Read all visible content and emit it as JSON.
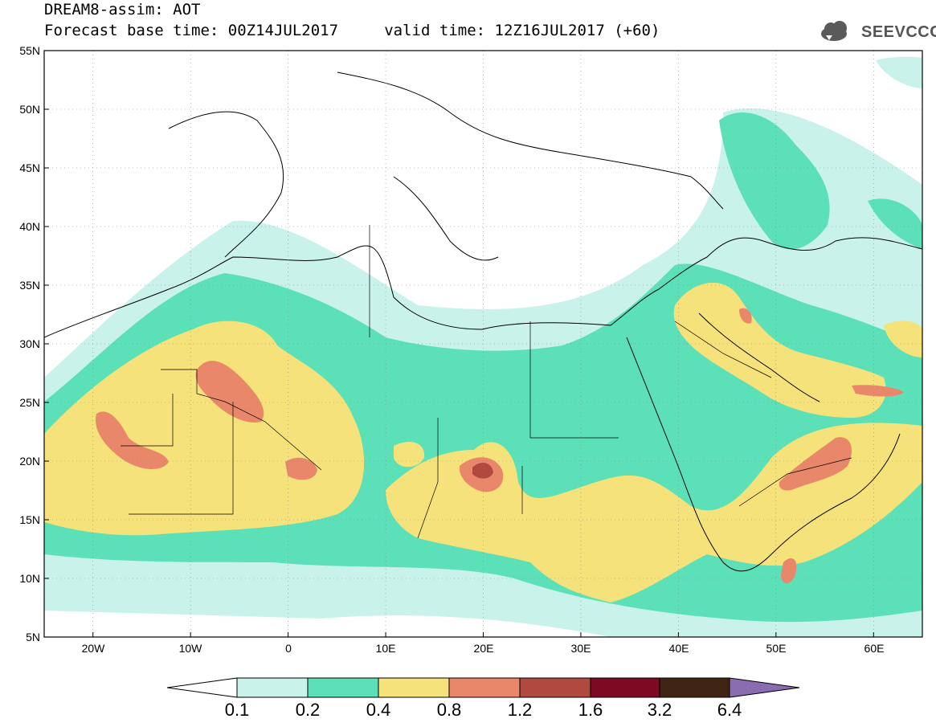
{
  "header": {
    "title": "DREAM8-assim: AOT",
    "subtitle": "Forecast base time: 00Z14JUL2017     valid time: 12Z16JUL2017 (+60)"
  },
  "logo": {
    "text": "SEEVCCC",
    "icon": "cloud-icon"
  },
  "map": {
    "lat_ticks": [
      "55N",
      "50N",
      "45N",
      "40N",
      "35N",
      "30N",
      "25N",
      "20N",
      "15N",
      "10N",
      "5N"
    ],
    "lon_ticks": [
      "20W",
      "10W",
      "0",
      "10E",
      "20E",
      "30E",
      "40E",
      "50E",
      "60E"
    ],
    "lon_range": [
      -25,
      65
    ],
    "lat_range": [
      5,
      55
    ],
    "gridlines": true
  },
  "colorbar": {
    "labels": [
      "0.1",
      "0.2",
      "0.4",
      "0.8",
      "1.2",
      "1.6",
      "3.2",
      "6.4"
    ],
    "colors": [
      "#ffffff",
      "#c9f2ea",
      "#5ce0b8",
      "#f6e27a",
      "#e9876a",
      "#b04a3f",
      "#7d0a22",
      "#3f2413",
      "#8a6cb0"
    ]
  }
}
